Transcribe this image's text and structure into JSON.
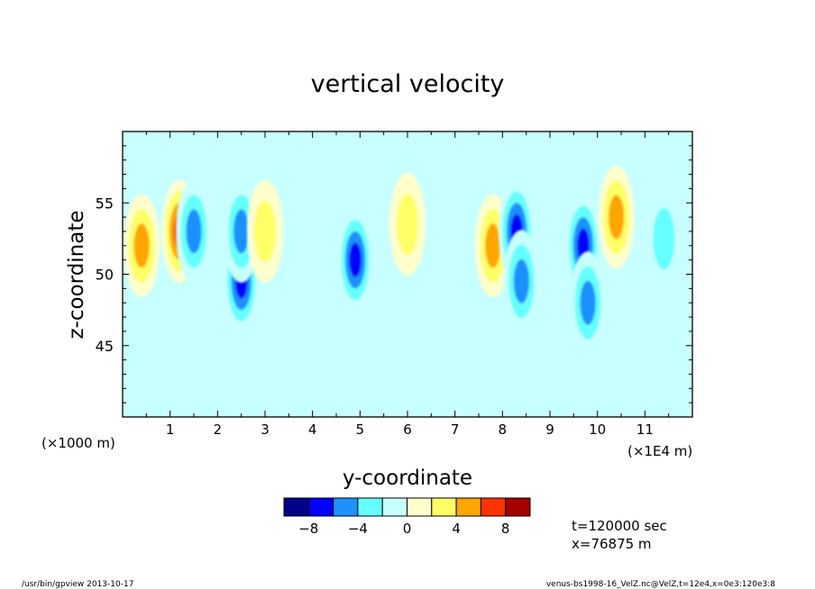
{
  "chart_data": {
    "type": "heatmap",
    "title": "vertical velocity",
    "xlabel": "y-coordinate",
    "ylabel": "z-coordinate",
    "x_unit_left": "(×1000 m)",
    "x_unit_right": "(×1E4 m)",
    "xlim": [
      0,
      12
    ],
    "ylim": [
      40,
      60
    ],
    "x_ticks": [
      1,
      2,
      3,
      4,
      5,
      6,
      7,
      8,
      9,
      10,
      11
    ],
    "y_ticks": [
      45,
      50,
      55
    ],
    "colorbar": {
      "levels": [
        -10,
        -8,
        -6,
        -4,
        -2,
        0,
        2,
        4,
        6,
        8,
        10
      ],
      "colors": [
        "#00008b",
        "#0000ff",
        "#1e90ff",
        "#66ffff",
        "#c8ffff",
        "#ffffcc",
        "#ffff66",
        "#ffa500",
        "#ff3300",
        "#a50000"
      ],
      "tick_labels": [
        "−8",
        "−4",
        "0",
        "4",
        "8"
      ],
      "tick_values": [
        -8,
        -4,
        0,
        4,
        8
      ]
    },
    "annotations": {
      "time": "t=120000 sec",
      "position": "x=76875 m"
    },
    "features": [
      {
        "y": 0.4,
        "z": 52.0,
        "value": 5
      },
      {
        "y": 1.2,
        "z": 53.0,
        "value": 7
      },
      {
        "y": 1.5,
        "z": 53.0,
        "value": -6
      },
      {
        "y": 2.5,
        "z": 49.5,
        "value": -8
      },
      {
        "y": 2.5,
        "z": 53.0,
        "value": -5
      },
      {
        "y": 3.0,
        "z": 53.0,
        "value": 3
      },
      {
        "y": 4.9,
        "z": 51.0,
        "value": -8
      },
      {
        "y": 6.0,
        "z": 53.5,
        "value": 3
      },
      {
        "y": 7.8,
        "z": 52.0,
        "value": 5
      },
      {
        "y": 8.3,
        "z": 53.0,
        "value": -7
      },
      {
        "y": 8.4,
        "z": 49.5,
        "value": -5
      },
      {
        "y": 9.7,
        "z": 52.0,
        "value": -7
      },
      {
        "y": 9.8,
        "z": 48.0,
        "value": -5
      },
      {
        "y": 10.4,
        "z": 54.0,
        "value": 5
      },
      {
        "y": 11.4,
        "z": 52.5,
        "value": -4
      }
    ]
  },
  "footer": {
    "left": "/usr/bin/gpview   2013-10-17",
    "right": "venus-bs1998-16_VelZ.nc@VelZ,t=12e4,x=0e3:120e3:8"
  }
}
